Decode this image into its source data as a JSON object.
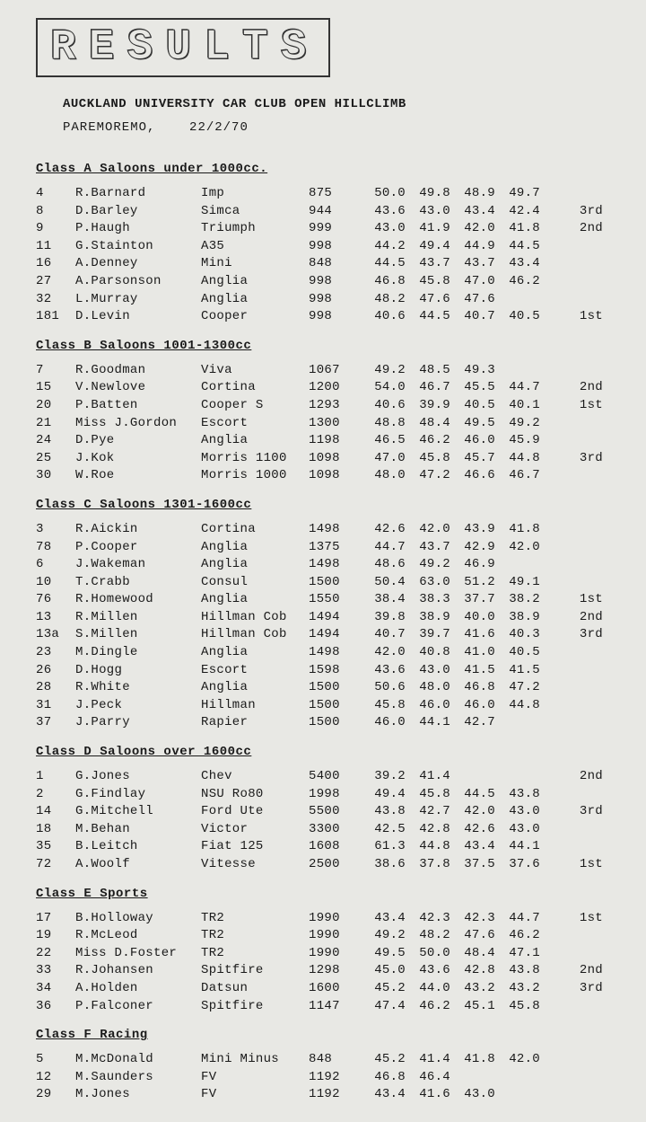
{
  "banner": "RESULTS",
  "title": "AUCKLAND UNIVERSITY CAR CLUB OPEN HILLCLIMB",
  "location": "PAREMOREMO,",
  "date": "22/2/70",
  "classes": [
    {
      "header": "Class A Saloons under 1000cc.",
      "rows": [
        {
          "num": "4",
          "name": "R.Barnard",
          "car": "Imp",
          "cc": "875",
          "t1": "50.0",
          "t2": "49.8",
          "t3": "48.9",
          "t4": "49.7",
          "pl": ""
        },
        {
          "num": "8",
          "name": "D.Barley",
          "car": "Simca",
          "cc": "944",
          "t1": "43.6",
          "t2": "43.0",
          "t3": "43.4",
          "t4": "42.4",
          "pl": "3rd"
        },
        {
          "num": "9",
          "name": "P.Haugh",
          "car": "Triumph",
          "cc": "999",
          "t1": "43.0",
          "t2": "41.9",
          "t3": "42.0",
          "t4": "41.8",
          "pl": "2nd"
        },
        {
          "num": "11",
          "name": "G.Stainton",
          "car": "A35",
          "cc": "998",
          "t1": "44.2",
          "t2": "49.4",
          "t3": "44.9",
          "t4": "44.5",
          "pl": ""
        },
        {
          "num": "16",
          "name": "A.Denney",
          "car": "Mini",
          "cc": "848",
          "t1": "44.5",
          "t2": "43.7",
          "t3": "43.7",
          "t4": "43.4",
          "pl": ""
        },
        {
          "num": "27",
          "name": "A.Parsonson",
          "car": "Anglia",
          "cc": "998",
          "t1": "46.8",
          "t2": "45.8",
          "t3": "47.0",
          "t4": "46.2",
          "pl": ""
        },
        {
          "num": "32",
          "name": "L.Murray",
          "car": "Anglia",
          "cc": "998",
          "t1": "48.2",
          "t2": "47.6",
          "t3": "47.6",
          "t4": "",
          "pl": ""
        },
        {
          "num": "181",
          "name": "D.Levin",
          "car": "Cooper",
          "cc": "998",
          "t1": "40.6",
          "t2": "44.5",
          "t3": "40.7",
          "t4": "40.5",
          "pl": "1st"
        }
      ]
    },
    {
      "header": "Class B Saloons 1001-1300cc",
      "rows": [
        {
          "num": "7",
          "name": "R.Goodman",
          "car": "Viva",
          "cc": "1067",
          "t1": "49.2",
          "t2": "48.5",
          "t3": "49.3",
          "t4": "",
          "pl": ""
        },
        {
          "num": "15",
          "name": "V.Newlove",
          "car": "Cortina",
          "cc": "1200",
          "t1": "54.0",
          "t2": "46.7",
          "t3": "45.5",
          "t4": "44.7",
          "pl": "2nd"
        },
        {
          "num": "20",
          "name": "P.Batten",
          "car": "Cooper S",
          "cc": "1293",
          "t1": "40.6",
          "t2": "39.9",
          "t3": "40.5",
          "t4": "40.1",
          "pl": "1st"
        },
        {
          "num": "21",
          "name": "Miss J.Gordon",
          "car": "Escort",
          "cc": "1300",
          "t1": "48.8",
          "t2": "48.4",
          "t3": "49.5",
          "t4": "49.2",
          "pl": ""
        },
        {
          "num": "24",
          "name": "D.Pye",
          "car": "Anglia",
          "cc": "1198",
          "t1": "46.5",
          "t2": "46.2",
          "t3": "46.0",
          "t4": "45.9",
          "pl": ""
        },
        {
          "num": "25",
          "name": "J.Kok",
          "car": "Morris 1100",
          "cc": "1098",
          "t1": "47.0",
          "t2": "45.8",
          "t3": "45.7",
          "t4": "44.8",
          "pl": "3rd"
        },
        {
          "num": "30",
          "name": "W.Roe",
          "car": "Morris 1000",
          "cc": "1098",
          "t1": "48.0",
          "t2": "47.2",
          "t3": "46.6",
          "t4": "46.7",
          "pl": ""
        }
      ]
    },
    {
      "header": "Class C Saloons 1301-1600cc",
      "rows": [
        {
          "num": "3",
          "name": "R.Aickin",
          "car": "Cortina",
          "cc": "1498",
          "t1": "42.6",
          "t2": "42.0",
          "t3": "43.9",
          "t4": "41.8",
          "pl": ""
        },
        {
          "num": "78",
          "name": "P.Cooper",
          "car": "Anglia",
          "cc": "1375",
          "t1": "44.7",
          "t2": "43.7",
          "t3": "42.9",
          "t4": "42.0",
          "pl": ""
        },
        {
          "num": "6",
          "name": "J.Wakeman",
          "car": "Anglia",
          "cc": "1498",
          "t1": "48.6",
          "t2": "49.2",
          "t3": "46.9",
          "t4": "",
          "pl": ""
        },
        {
          "num": "10",
          "name": "T.Crabb",
          "car": "Consul",
          "cc": "1500",
          "t1": "50.4",
          "t2": "63.0",
          "t3": "51.2",
          "t4": "49.1",
          "pl": ""
        },
        {
          "num": "76",
          "name": "R.Homewood",
          "car": "Anglia",
          "cc": "1550",
          "t1": "38.4",
          "t2": "38.3",
          "t3": "37.7",
          "t4": "38.2",
          "pl": "1st"
        },
        {
          "num": "13",
          "name": "R.Millen",
          "car": "Hillman Cob",
          "cc": "1494",
          "t1": "39.8",
          "t2": "38.9",
          "t3": "40.0",
          "t4": "38.9",
          "pl": "2nd"
        },
        {
          "num": "13a",
          "name": "S.Millen",
          "car": "Hillman Cob",
          "cc": "1494",
          "t1": "40.7",
          "t2": "39.7",
          "t3": "41.6",
          "t4": "40.3",
          "pl": "3rd"
        },
        {
          "num": "23",
          "name": "M.Dingle",
          "car": "Anglia",
          "cc": "1498",
          "t1": "42.0",
          "t2": "40.8",
          "t3": "41.0",
          "t4": "40.5",
          "pl": ""
        },
        {
          "num": "26",
          "name": "D.Hogg",
          "car": "Escort",
          "cc": "1598",
          "t1": "43.6",
          "t2": "43.0",
          "t3": "41.5",
          "t4": "41.5",
          "pl": ""
        },
        {
          "num": "28",
          "name": "R.White",
          "car": "Anglia",
          "cc": "1500",
          "t1": "50.6",
          "t2": "48.0",
          "t3": "46.8",
          "t4": "47.2",
          "pl": ""
        },
        {
          "num": "31",
          "name": "J.Peck",
          "car": "Hillman",
          "cc": "1500",
          "t1": "45.8",
          "t2": "46.0",
          "t3": "46.0",
          "t4": "44.8",
          "pl": ""
        },
        {
          "num": "37",
          "name": "J.Parry",
          "car": "Rapier",
          "cc": "1500",
          "t1": "46.0",
          "t2": "44.1",
          "t3": "42.7",
          "t4": "",
          "pl": ""
        }
      ]
    },
    {
      "header": "Class D Saloons over 1600cc",
      "rows": [
        {
          "num": "1",
          "name": "G.Jones",
          "car": "Chev",
          "cc": "5400",
          "t1": "39.2",
          "t2": "41.4",
          "t3": "",
          "t4": "",
          "pl": "2nd"
        },
        {
          "num": "2",
          "name": "G.Findlay",
          "car": "NSU Ro80",
          "cc": "1998",
          "t1": "49.4",
          "t2": "45.8",
          "t3": "44.5",
          "t4": "43.8",
          "pl": ""
        },
        {
          "num": "14",
          "name": "G.Mitchell",
          "car": "Ford Ute",
          "cc": "5500",
          "t1": "43.8",
          "t2": "42.7",
          "t3": "42.0",
          "t4": "43.0",
          "pl": "3rd"
        },
        {
          "num": "18",
          "name": "M.Behan",
          "car": "Victor",
          "cc": "3300",
          "t1": "42.5",
          "t2": "42.8",
          "t3": "42.6",
          "t4": "43.0",
          "pl": ""
        },
        {
          "num": "35",
          "name": "B.Leitch",
          "car": "Fiat 125",
          "cc": "1608",
          "t1": "61.3",
          "t2": "44.8",
          "t3": "43.4",
          "t4": "44.1",
          "pl": ""
        },
        {
          "num": "72",
          "name": "A.Woolf",
          "car": "Vitesse",
          "cc": "2500",
          "t1": "38.6",
          "t2": "37.8",
          "t3": "37.5",
          "t4": "37.6",
          "pl": "1st"
        }
      ]
    },
    {
      "header": "Class E Sports",
      "rows": [
        {
          "num": "17",
          "name": "B.Holloway",
          "car": "TR2",
          "cc": "1990",
          "t1": "43.4",
          "t2": "42.3",
          "t3": "42.3",
          "t4": "44.7",
          "pl": "1st"
        },
        {
          "num": "19",
          "name": "R.McLeod",
          "car": "TR2",
          "cc": "1990",
          "t1": "49.2",
          "t2": "48.2",
          "t3": "47.6",
          "t4": "46.2",
          "pl": ""
        },
        {
          "num": "22",
          "name": "Miss D.Foster",
          "car": "TR2",
          "cc": "1990",
          "t1": "49.5",
          "t2": "50.0",
          "t3": "48.4",
          "t4": "47.1",
          "pl": ""
        },
        {
          "num": "33",
          "name": "R.Johansen",
          "car": "Spitfire",
          "cc": "1298",
          "t1": "45.0",
          "t2": "43.6",
          "t3": "42.8",
          "t4": "43.8",
          "pl": "2nd"
        },
        {
          "num": "34",
          "name": "A.Holden",
          "car": "Datsun",
          "cc": "1600",
          "t1": "45.2",
          "t2": "44.0",
          "t3": "43.2",
          "t4": "43.2",
          "pl": "3rd"
        },
        {
          "num": "36",
          "name": "P.Falconer",
          "car": "Spitfire",
          "cc": "1147",
          "t1": "47.4",
          "t2": "46.2",
          "t3": "45.1",
          "t4": "45.8",
          "pl": ""
        }
      ]
    },
    {
      "header": "Class F Racing",
      "rows": [
        {
          "num": "5",
          "name": "M.McDonald",
          "car": "Mini Minus",
          "cc": "848",
          "t1": "45.2",
          "t2": "41.4",
          "t3": "41.8",
          "t4": "42.0",
          "pl": ""
        },
        {
          "num": "12",
          "name": "M.Saunders",
          "car": "FV",
          "cc": "1192",
          "t1": "46.8",
          "t2": "46.4",
          "t3": "",
          "t4": "",
          "pl": ""
        },
        {
          "num": "29",
          "name": "M.Jones",
          "car": "FV",
          "cc": "1192",
          "t1": "43.4",
          "t2": "41.6",
          "t3": "43.0",
          "t4": "",
          "pl": ""
        }
      ]
    }
  ]
}
